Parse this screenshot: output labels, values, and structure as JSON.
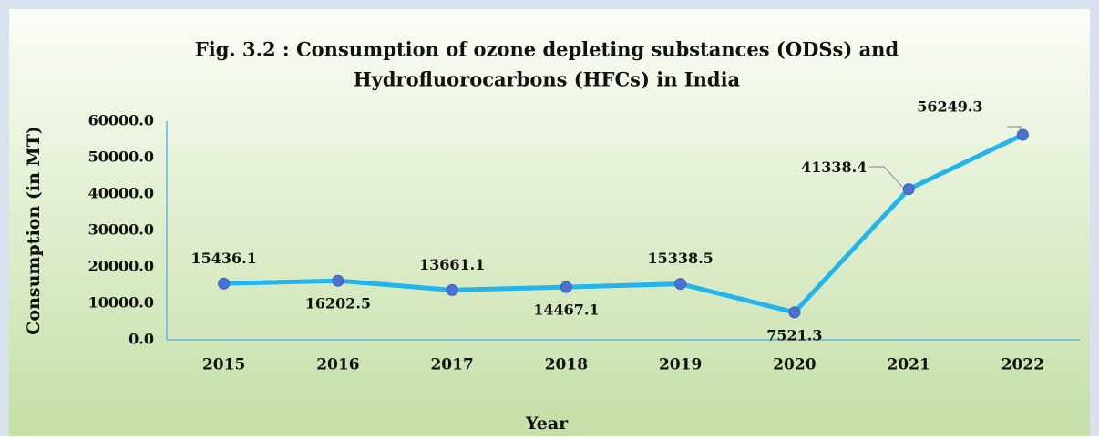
{
  "chart_data": {
    "type": "line",
    "title": [
      "Fig. 3.2 : Consumption of ozone depleting substances (ODSs) and",
      "Hydrofluorocarbons (HFCs) in India"
    ],
    "x_label": "Year",
    "y_label": "Consumption (in MT)",
    "categories": [
      "2015",
      "2016",
      "2017",
      "2018",
      "2019",
      "2020",
      "2021",
      "2022"
    ],
    "series": [
      {
        "name": "Consumption",
        "color": "#22b4ec",
        "marker_color": "#4a72d4",
        "values": [
          15436.1,
          16202.5,
          13661.1,
          14467.1,
          15338.5,
          7521.3,
          41338.4,
          56249.3
        ]
      }
    ],
    "ylim": [
      0,
      60000
    ],
    "yticks": [
      {
        "value": 0,
        "label": "0.0"
      },
      {
        "value": 10000,
        "label": "10000.0"
      },
      {
        "value": 20000,
        "label": "20000.0"
      },
      {
        "value": 30000,
        "label": "30000.0"
      },
      {
        "value": 40000,
        "label": "40000.0"
      },
      {
        "value": 50000,
        "label": "50000.0"
      },
      {
        "value": 60000,
        "label": "60000.0"
      }
    ],
    "grid": false
  }
}
